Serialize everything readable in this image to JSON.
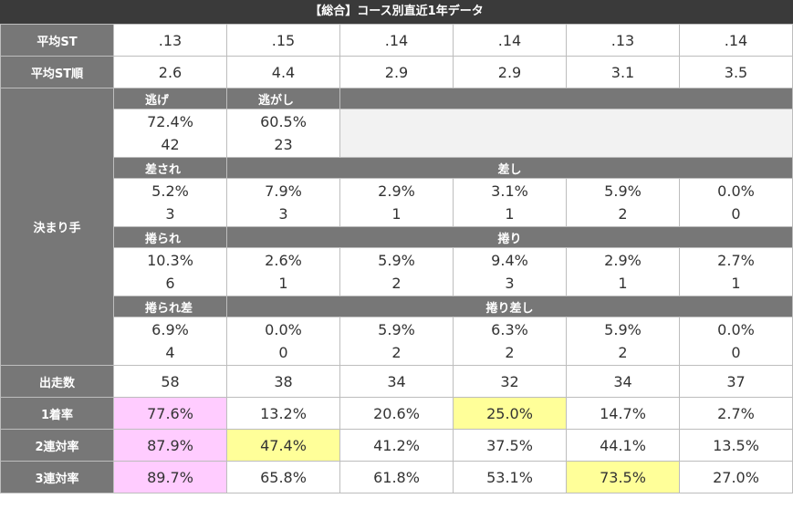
{
  "title": "【総合】コース別直近1年データ",
  "rows": {
    "avg_st": {
      "label": "平均ST",
      "values": [
        ".13",
        ".15",
        ".14",
        ".14",
        ".13",
        ".14"
      ]
    },
    "avg_st_rank": {
      "label": "平均ST順",
      "values": [
        "2.6",
        "4.4",
        "2.9",
        "2.9",
        "3.1",
        "3.5"
      ]
    },
    "kimarite": {
      "label": "決まり手",
      "nige": {
        "label": "逃げ",
        "pct": "72.4%",
        "count": "42"
      },
      "nigashi": {
        "label": "逃がし",
        "pct": "60.5%",
        "count": "23"
      },
      "sasare_label": "差され",
      "sashi_label": "差し",
      "sashi": [
        {
          "pct": "5.2%",
          "count": "3"
        },
        {
          "pct": "7.9%",
          "count": "3"
        },
        {
          "pct": "2.9%",
          "count": "1"
        },
        {
          "pct": "3.1%",
          "count": "1"
        },
        {
          "pct": "5.9%",
          "count": "2"
        },
        {
          "pct": "0.0%",
          "count": "0"
        }
      ],
      "makurare_label": "捲られ",
      "makuri_label": "捲り",
      "makuri": [
        {
          "pct": "10.3%",
          "count": "6"
        },
        {
          "pct": "2.6%",
          "count": "1"
        },
        {
          "pct": "5.9%",
          "count": "2"
        },
        {
          "pct": "9.4%",
          "count": "3"
        },
        {
          "pct": "2.9%",
          "count": "1"
        },
        {
          "pct": "2.7%",
          "count": "1"
        }
      ],
      "makurare_sashi_label": "捲られ差",
      "makuri_sashi_label": "捲り差し",
      "makuri_sashi": [
        {
          "pct": "6.9%",
          "count": "4"
        },
        {
          "pct": "0.0%",
          "count": "0"
        },
        {
          "pct": "5.9%",
          "count": "2"
        },
        {
          "pct": "6.3%",
          "count": "2"
        },
        {
          "pct": "5.9%",
          "count": "2"
        },
        {
          "pct": "0.0%",
          "count": "0"
        }
      ]
    },
    "starts": {
      "label": "出走数",
      "values": [
        "58",
        "38",
        "34",
        "32",
        "34",
        "37"
      ]
    },
    "win_rate": {
      "label": "1着率",
      "values": [
        "77.6%",
        "13.2%",
        "20.6%",
        "25.0%",
        "14.7%",
        "2.7%"
      ]
    },
    "top2_rate": {
      "label": "2連対率",
      "values": [
        "87.9%",
        "47.4%",
        "41.2%",
        "37.5%",
        "44.1%",
        "13.5%"
      ]
    },
    "top3_rate": {
      "label": "3連対率",
      "values": [
        "89.7%",
        "65.8%",
        "61.8%",
        "53.1%",
        "73.5%",
        "27.0%"
      ]
    }
  },
  "highlight_colors": {
    "pink": "#ffccff",
    "yellow": "#ffff99",
    "header": "#777777",
    "title": "#3a3a3a"
  }
}
